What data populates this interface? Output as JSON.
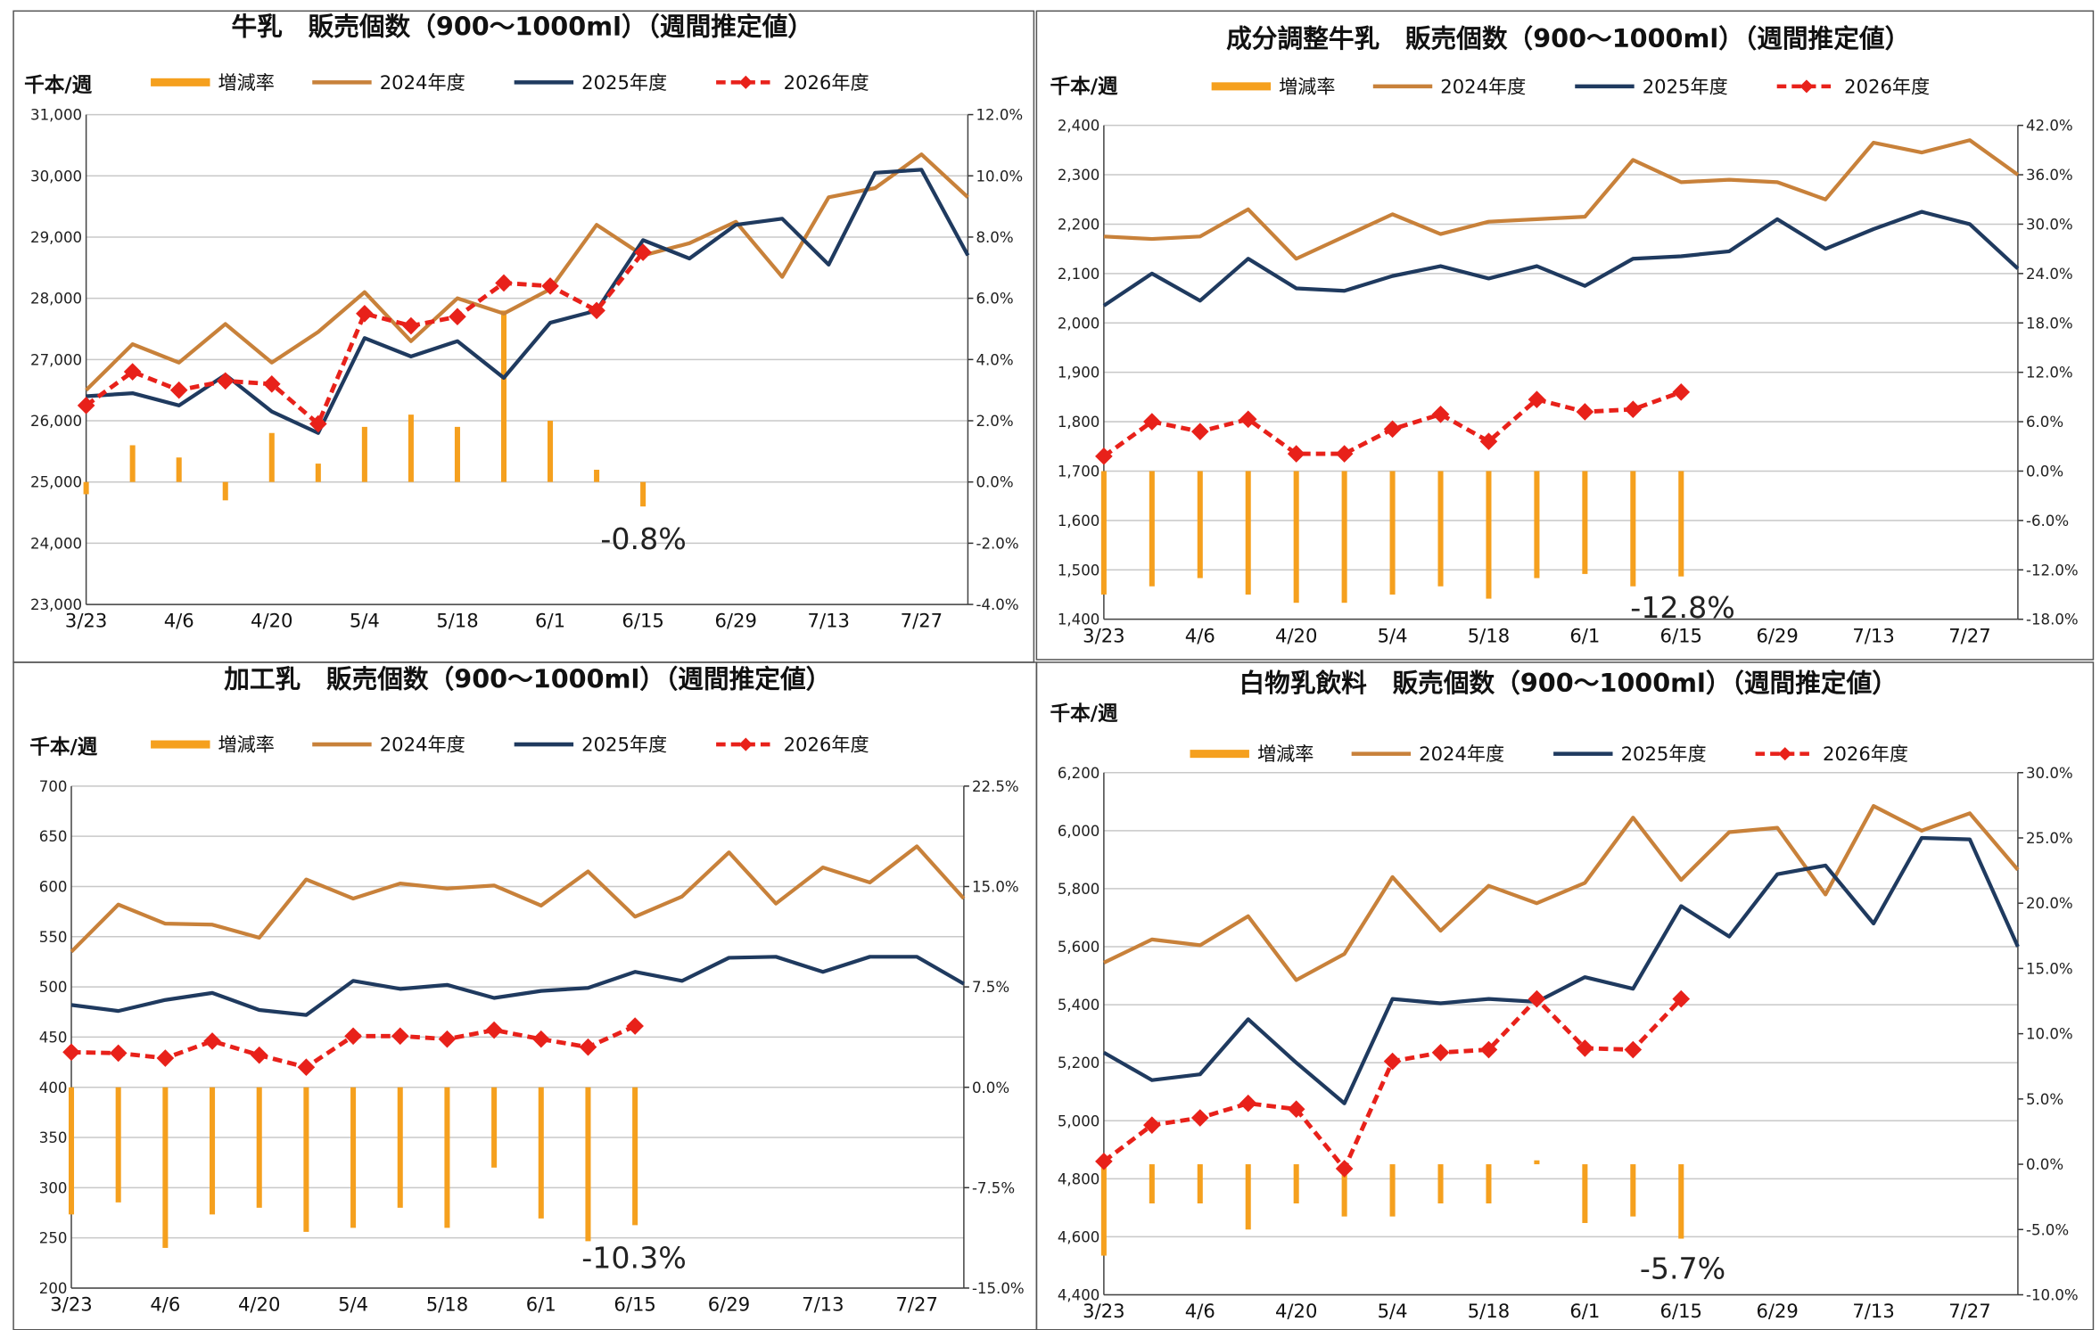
{
  "chart_data": [
    {
      "type": "combo",
      "title": "牛乳　販売個数（900～1000ml）（週間推定値）",
      "ylabel": "千本/週",
      "annotation": "-0.8%",
      "categories": [
        "3/23",
        null,
        "4/6",
        null,
        "4/20",
        null,
        "5/4",
        null,
        "5/18",
        null,
        "6/1",
        null,
        "6/15",
        null,
        "6/29",
        null,
        "7/13",
        null,
        "7/27",
        null
      ],
      "series": [
        {
          "name": "増減率",
          "type": "bar",
          "axis": "y2",
          "color": "#f5a01e",
          "values": [
            -0.4,
            1.2,
            0.8,
            -0.6,
            1.6,
            0.6,
            1.8,
            2.2,
            1.8,
            5.6,
            2.0,
            0.4,
            -0.8,
            null,
            null,
            null,
            null,
            null,
            null,
            null
          ]
        },
        {
          "name": "2024年度",
          "type": "line",
          "color": "#c8813a",
          "values": [
            26500,
            27250,
            26950,
            27580,
            26950,
            27450,
            28100,
            27300,
            28000,
            27750,
            28150,
            29200,
            28700,
            28900,
            29250,
            28350,
            29650,
            29800,
            30350,
            29650
          ]
        },
        {
          "name": "2025年度",
          "type": "line",
          "color": "#1f3a5f",
          "values": [
            26400,
            26450,
            26250,
            26750,
            26150,
            25800,
            27350,
            27050,
            27300,
            26700,
            27600,
            27800,
            28950,
            28650,
            29200,
            29300,
            28550,
            30050,
            30100,
            28700
          ]
        },
        {
          "name": "2026年度",
          "type": "line",
          "dashed": true,
          "marker": "diamond",
          "color": "#e8211a",
          "values": [
            26250,
            26800,
            26500,
            26650,
            26600,
            25950,
            27750,
            27550,
            27700,
            28250,
            28200,
            27800,
            28750,
            null,
            null,
            null,
            null,
            null,
            null,
            null
          ]
        }
      ],
      "ylim": [
        23000,
        31000
      ],
      "yticks": [
        {
          "value": 23000,
          "label": "23,000"
        },
        {
          "value": 24000,
          "label": "24,000"
        },
        {
          "value": 25000,
          "label": "25,000"
        },
        {
          "value": 26000,
          "label": "26,000"
        },
        {
          "value": 27000,
          "label": "27,000"
        },
        {
          "value": 28000,
          "label": "28,000"
        },
        {
          "value": 29000,
          "label": "29,000"
        },
        {
          "value": 30000,
          "label": "30,000"
        },
        {
          "value": 31000,
          "label": "31,000"
        }
      ],
      "y2lim": [
        -4,
        12
      ],
      "y2ticks": [
        {
          "value": -4,
          "label": "-4.0%"
        },
        {
          "value": -2,
          "label": "-2.0%"
        },
        {
          "value": 0,
          "label": "0.0%"
        },
        {
          "value": 2,
          "label": "2.0%"
        },
        {
          "value": 4,
          "label": "4.0%"
        },
        {
          "value": 6,
          "label": "6.0%"
        },
        {
          "value": 8,
          "label": "8.0%"
        },
        {
          "value": 10,
          "label": "10.0%"
        },
        {
          "value": 12,
          "label": "12.0%"
        }
      ],
      "grid": true
    },
    {
      "type": "combo",
      "title": "成分調整牛乳　販売個数（900～1000ml）（週間推定値）",
      "ylabel": "千本/週",
      "annotation": "-12.8%",
      "categories": [
        "3/23",
        null,
        "4/6",
        null,
        "4/20",
        null,
        "5/4",
        null,
        "5/18",
        null,
        "6/1",
        null,
        "6/15",
        null,
        "6/29",
        null,
        "7/13",
        null,
        "7/27",
        null
      ],
      "series": [
        {
          "name": "増減率",
          "type": "bar",
          "axis": "y2",
          "color": "#f5a01e",
          "values": [
            -15,
            -14,
            -13,
            -15,
            -16,
            -16,
            -15,
            -14,
            -15.5,
            -13,
            -12.5,
            -14,
            -12.8,
            null,
            null,
            null,
            null,
            null,
            null,
            null
          ]
        },
        {
          "name": "2024年度",
          "type": "line",
          "color": "#c8813a",
          "values": [
            2175,
            2170,
            2175,
            2230,
            2130,
            2175,
            2220,
            2180,
            2205,
            2210,
            2215,
            2330,
            2285,
            2290,
            2285,
            2250,
            2365,
            2345,
            2370,
            2300
          ]
        },
        {
          "name": "2025年度",
          "type": "line",
          "color": "#1f3a5f",
          "values": [
            2035,
            2100,
            2045,
            2130,
            2070,
            2065,
            2095,
            2115,
            2090,
            2115,
            2075,
            2130,
            2135,
            2145,
            2210,
            2150,
            2190,
            2225,
            2200,
            2110
          ]
        },
        {
          "name": "2026年度",
          "type": "line",
          "dashed": true,
          "marker": "diamond",
          "color": "#e8211a",
          "values": [
            1730,
            1800,
            1780,
            1805,
            1735,
            1735,
            1785,
            1815,
            1760,
            1845,
            1820,
            1825,
            1860,
            null,
            null,
            null,
            null,
            null,
            null,
            null
          ]
        }
      ],
      "ylim": [
        1400,
        2400
      ],
      "yticks": [
        {
          "value": 1400,
          "label": "1,400"
        },
        {
          "value": 1500,
          "label": "1,500"
        },
        {
          "value": 1600,
          "label": "1,600"
        },
        {
          "value": 1700,
          "label": "1,700"
        },
        {
          "value": 1800,
          "label": "1,800"
        },
        {
          "value": 1900,
          "label": "1,900"
        },
        {
          "value": 2000,
          "label": "2,000"
        },
        {
          "value": 2100,
          "label": "2,100"
        },
        {
          "value": 2200,
          "label": "2,200"
        },
        {
          "value": 2300,
          "label": "2,300"
        },
        {
          "value": 2400,
          "label": "2,400"
        }
      ],
      "y2lim": [
        -18,
        42
      ],
      "y2ticks": [
        {
          "value": -18,
          "label": "-18.0%"
        },
        {
          "value": -12,
          "label": "-12.0%"
        },
        {
          "value": -6,
          "label": "-6.0%"
        },
        {
          "value": 0,
          "label": "0.0%"
        },
        {
          "value": 6,
          "label": "6.0%"
        },
        {
          "value": 12,
          "label": "12.0%"
        },
        {
          "value": 18,
          "label": "18.0%"
        },
        {
          "value": 24,
          "label": "24.0%"
        },
        {
          "value": 30,
          "label": "30.0%"
        },
        {
          "value": 36,
          "label": "36.0%"
        },
        {
          "value": 42,
          "label": "42.0%"
        }
      ],
      "grid": true
    },
    {
      "type": "combo",
      "title": "加工乳　販売個数（900～1000ml）（週間推定値）",
      "ylabel": "千本/週",
      "annotation": "-10.3%",
      "categories": [
        "3/23",
        null,
        "4/6",
        null,
        "4/20",
        null,
        "5/4",
        null,
        "5/18",
        null,
        "6/1",
        null,
        "6/15",
        null,
        "6/29",
        null,
        "7/13",
        null,
        "7/27",
        null
      ],
      "series": [
        {
          "name": "増減率",
          "type": "bar",
          "axis": "y2",
          "color": "#f5a01e",
          "values": [
            -9.5,
            -8.6,
            -12,
            -9.5,
            -9,
            -10.8,
            -10.5,
            -9,
            -10.5,
            -6,
            -9.8,
            -11.5,
            -10.3,
            null,
            null,
            null,
            null,
            null,
            null,
            null
          ]
        },
        {
          "name": "2024年度",
          "type": "line",
          "color": "#c8813a",
          "values": [
            535,
            582,
            563,
            562,
            549,
            607,
            588,
            603,
            598,
            601,
            581,
            615,
            570,
            590,
            634,
            583,
            619,
            604,
            640,
            588
          ]
        },
        {
          "name": "2025年度",
          "type": "line",
          "color": "#1f3a5f",
          "values": [
            482,
            476,
            487,
            494,
            477,
            472,
            506,
            498,
            502,
            489,
            496,
            499,
            515,
            506,
            529,
            530,
            515,
            530,
            530,
            503
          ]
        },
        {
          "name": "2026年度",
          "type": "line",
          "dashed": true,
          "marker": "diamond",
          "color": "#e8211a",
          "values": [
            435,
            434,
            429,
            446,
            432,
            420,
            451,
            451,
            448,
            457,
            448,
            440,
            461,
            null,
            null,
            null,
            null,
            null,
            null,
            null
          ]
        }
      ],
      "ylim": [
        200,
        700
      ],
      "yticks": [
        200,
        250,
        300,
        350,
        400,
        450,
        500,
        550,
        600,
        650,
        700
      ],
      "y2lim": [
        -15,
        22.5
      ],
      "y2ticks": [
        {
          "value": -15,
          "label": "-15.0%"
        },
        {
          "value": -7.5,
          "label": "-7.5%"
        },
        {
          "value": 0,
          "label": "0.0%"
        },
        {
          "value": 7.5,
          "label": "7.5%"
        },
        {
          "value": 15,
          "label": "15.0%"
        },
        {
          "value": 22.5,
          "label": "22.5%"
        }
      ],
      "grid": true
    },
    {
      "type": "combo",
      "title": "白物乳飲料　販売個数（900～1000ml）（週間推定値）",
      "ylabel": "千本/週",
      "annotation": "-5.7%",
      "categories": [
        "3/23",
        null,
        "4/6",
        null,
        "4/20",
        null,
        "5/4",
        null,
        "5/18",
        null,
        "6/1",
        null,
        "6/15",
        null,
        "6/29",
        null,
        "7/13",
        null,
        "7/27",
        null
      ],
      "series": [
        {
          "name": "増減率",
          "type": "bar",
          "axis": "y2",
          "color": "#f5a01e",
          "values": [
            -7,
            -3,
            -3,
            -5,
            -3,
            -4,
            -4,
            -3,
            -3,
            0.3,
            -4.5,
            -4,
            -5.7,
            null,
            null,
            null,
            null,
            null,
            null,
            null
          ]
        },
        {
          "name": "2024年度",
          "type": "line",
          "color": "#c8813a",
          "values": [
            5545,
            5625,
            5605,
            5705,
            5485,
            5575,
            5840,
            5655,
            5810,
            5750,
            5820,
            6045,
            5830,
            5995,
            6010,
            5780,
            6085,
            6000,
            6060,
            5865
          ]
        },
        {
          "name": "2025年度",
          "type": "line",
          "color": "#1f3a5f",
          "values": [
            5235,
            5140,
            5160,
            5350,
            5200,
            5060,
            5420,
            5405,
            5420,
            5410,
            5495,
            5455,
            5740,
            5635,
            5850,
            5880,
            5680,
            5975,
            5970,
            5600
          ]
        },
        {
          "name": "2026年度",
          "type": "line",
          "dashed": true,
          "marker": "diamond",
          "color": "#e8211a",
          "values": [
            4860,
            4985,
            5010,
            5060,
            5040,
            4835,
            5205,
            5235,
            5245,
            5420,
            5250,
            5245,
            5420,
            null,
            null,
            null,
            null,
            null,
            null,
            null
          ]
        }
      ],
      "ylim": [
        4400,
        6200
      ],
      "yticks": [
        {
          "value": 4400,
          "label": "4,400"
        },
        {
          "value": 4600,
          "label": "4,600"
        },
        {
          "value": 4800,
          "label": "4,800"
        },
        {
          "value": 5000,
          "label": "5,000"
        },
        {
          "value": 5200,
          "label": "5,200"
        },
        {
          "value": 5400,
          "label": "5,400"
        },
        {
          "value": 5600,
          "label": "5,600"
        },
        {
          "value": 5800,
          "label": "5,800"
        },
        {
          "value": 6000,
          "label": "6,000"
        },
        {
          "value": 6200,
          "label": "6,200"
        }
      ],
      "y2lim": [
        -10,
        30
      ],
      "y2ticks": [
        {
          "value": -10,
          "label": "-10.0%"
        },
        {
          "value": -5,
          "label": "-5.0%"
        },
        {
          "value": 0,
          "label": "0.0%"
        },
        {
          "value": 5,
          "label": "5.0%"
        },
        {
          "value": 10,
          "label": "10.0%"
        },
        {
          "value": 15,
          "label": "15.0%"
        },
        {
          "value": 20,
          "label": "20.0%"
        },
        {
          "value": 25,
          "label": "25.0%"
        },
        {
          "value": 30,
          "label": "30.0%"
        }
      ],
      "grid": true
    }
  ]
}
